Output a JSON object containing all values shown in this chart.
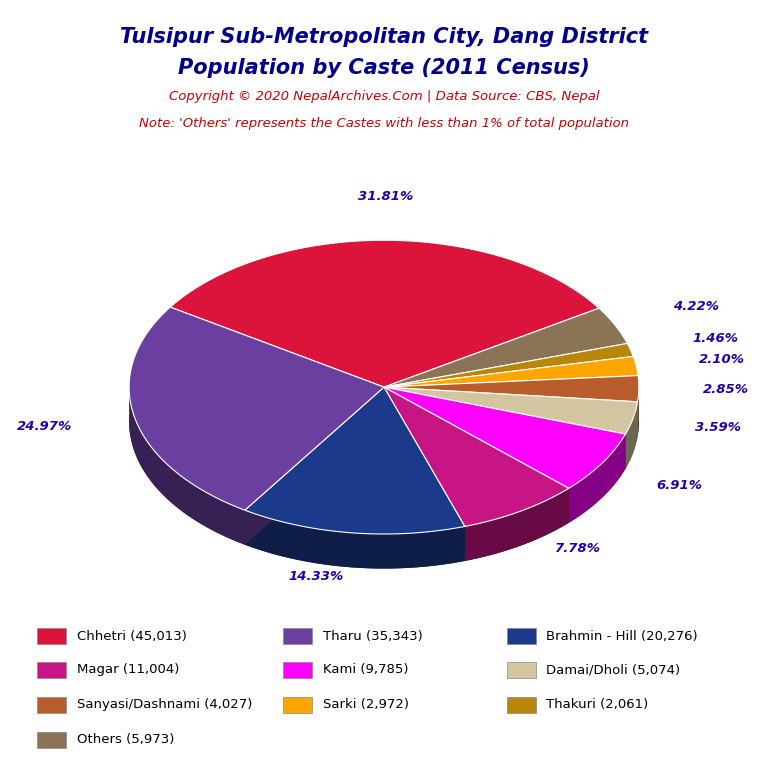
{
  "title_line1": "Tulsipur Sub-Metropolitan City, Dang District",
  "title_line2": "Population by Caste (2011 Census)",
  "copyright_text": "Copyright © 2020 NepalArchives.Com | Data Source: CBS, Nepal",
  "note_text": "Note: 'Others' represents the Castes with less than 1% of total population",
  "labels": [
    "Chhetri",
    "Tharu",
    "Brahmin - Hill",
    "Magar",
    "Kami",
    "Damai/Dholi",
    "Sanyasi/Dashnami",
    "Sarki",
    "Thakuri",
    "Others"
  ],
  "values": [
    45013,
    35343,
    20276,
    11004,
    9785,
    5074,
    4027,
    2972,
    2061,
    5973
  ],
  "percentages": [
    "31.81%",
    "24.97%",
    "14.33%",
    "7.78%",
    "6.91%",
    "3.59%",
    "2.85%",
    "2.10%",
    "1.46%",
    "4.22%"
  ],
  "colors": [
    "#DC143C",
    "#6B3FA0",
    "#1B3A8C",
    "#C71585",
    "#FF00FF",
    "#D2C5A0",
    "#B85C2C",
    "#FFA500",
    "#B8860B",
    "#8B7355"
  ],
  "legend_labels": [
    "Chhetri (45,013)",
    "Tharu (35,343)",
    "Brahmin - Hill (20,276)",
    "Magar (11,004)",
    "Kami (9,785)",
    "Damai/Dholi (5,074)",
    "Sanyasi/Dashnami (4,027)",
    "Sarki (2,972)",
    "Thakuri (2,061)",
    "Others (5,973)"
  ],
  "title_color": "#00008B",
  "copyright_color": "#CC0000",
  "note_color": "#CC0000",
  "pct_label_color": "#2200AA",
  "background_color": "#FFFFFF"
}
